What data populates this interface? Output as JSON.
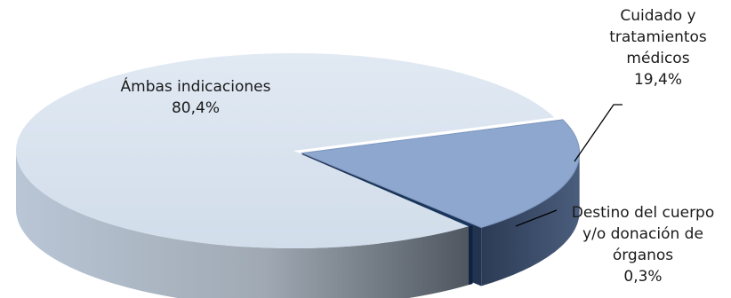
{
  "chart_data": {
    "type": "pie",
    "title": "",
    "style": "3d-exploded",
    "slices": [
      {
        "label_lines": [
          "Ámbas indicaciones"
        ],
        "value_text": "80,4%",
        "value": 80.4,
        "color": "#d7e2ef"
      },
      {
        "label_lines": [
          "Cuidado y",
          "tratamientos",
          "médicos"
        ],
        "value_text": "19,4%",
        "value": 19.4,
        "color": "#8ea7cf"
      },
      {
        "label_lines": [
          "Destino del cuerpo",
          "y/o donación de",
          "órganos"
        ],
        "value_text": "0,3%",
        "value": 0.3,
        "color": "#17365d"
      }
    ]
  }
}
